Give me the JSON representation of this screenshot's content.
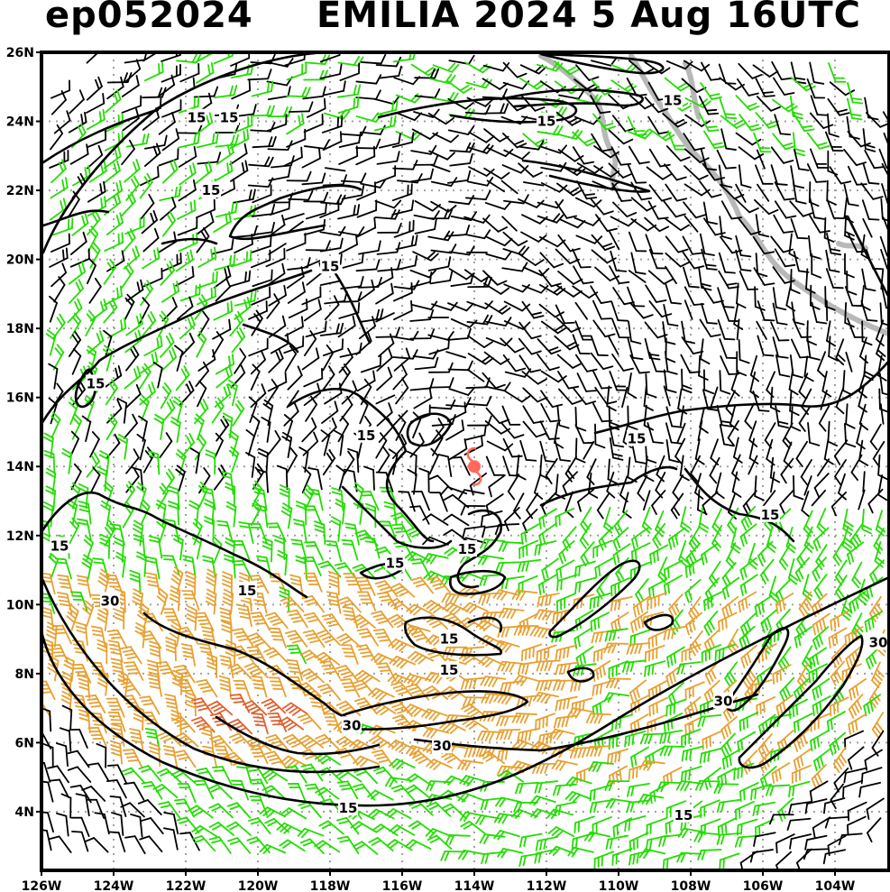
{
  "header": {
    "storm_id": "ep052024",
    "title": "EMILIA 2024   5 Aug 16UTC"
  },
  "map": {
    "lon_range": [
      -126,
      -102.5
    ],
    "lat_range": [
      2.3,
      26
    ],
    "lon_ticks": [
      "126W",
      "124W",
      "122W",
      "120W",
      "118W",
      "116W",
      "114W",
      "112W",
      "110W",
      "108W",
      "106W",
      "104W"
    ],
    "lon_tick_values": [
      -126,
      -124,
      -122,
      -120,
      -118,
      -116,
      -114,
      -112,
      -110,
      -108,
      -106,
      -104
    ],
    "lat_ticks": [
      "4N",
      "6N",
      "8N",
      "10N",
      "12N",
      "14N",
      "16N",
      "18N",
      "20N",
      "22N",
      "24N",
      "26N"
    ],
    "lat_tick_values": [
      4,
      6,
      8,
      10,
      12,
      14,
      16,
      18,
      20,
      22,
      24,
      26
    ],
    "storm_center": {
      "lon": -114.0,
      "lat": 14.0,
      "symbol": "tropical-cyclone-icon",
      "color": "#ff6a5a"
    },
    "contour_labels": [
      {
        "text": "15",
        "lon": -121.7,
        "lat": 24.1
      },
      {
        "text": "15",
        "lon": -120.8,
        "lat": 24.1
      },
      {
        "text": "15",
        "lon": -108.5,
        "lat": 24.6
      },
      {
        "text": "15",
        "lon": -112.0,
        "lat": 24.0
      },
      {
        "text": "15",
        "lon": -121.3,
        "lat": 22.0
      },
      {
        "text": "15",
        "lon": -118.0,
        "lat": 19.8
      },
      {
        "text": "15",
        "lon": -124.5,
        "lat": 16.4
      },
      {
        "text": "15",
        "lon": -117.0,
        "lat": 14.9
      },
      {
        "text": "15",
        "lon": -109.5,
        "lat": 14.8
      },
      {
        "text": "15",
        "lon": -105.8,
        "lat": 12.6
      },
      {
        "text": "15",
        "lon": -125.5,
        "lat": 11.7
      },
      {
        "text": "15",
        "lon": -114.2,
        "lat": 11.6
      },
      {
        "text": "15",
        "lon": -116.2,
        "lat": 11.2
      },
      {
        "text": "15",
        "lon": -120.3,
        "lat": 10.4
      },
      {
        "text": "15",
        "lon": -114.7,
        "lat": 9.0
      },
      {
        "text": "15",
        "lon": -114.7,
        "lat": 8.1
      },
      {
        "text": "15",
        "lon": -117.5,
        "lat": 4.1
      },
      {
        "text": "15",
        "lon": -108.2,
        "lat": 3.9
      },
      {
        "text": "30",
        "lon": -124.1,
        "lat": 10.1
      },
      {
        "text": "30",
        "lon": -102.8,
        "lat": 8.9
      },
      {
        "text": "30",
        "lon": -107.1,
        "lat": 7.2
      },
      {
        "text": "30",
        "lon": -117.4,
        "lat": 6.5
      },
      {
        "text": "30",
        "lon": -114.9,
        "lat": 5.9
      }
    ],
    "colors": {
      "weak_barb": "#000000",
      "moderate_barb": "#22dd00",
      "strong_barb": "#e8a030",
      "extreme_barb": "#e06030",
      "coastline": "#b0b0b0",
      "grid": "#a0a0a0"
    }
  }
}
